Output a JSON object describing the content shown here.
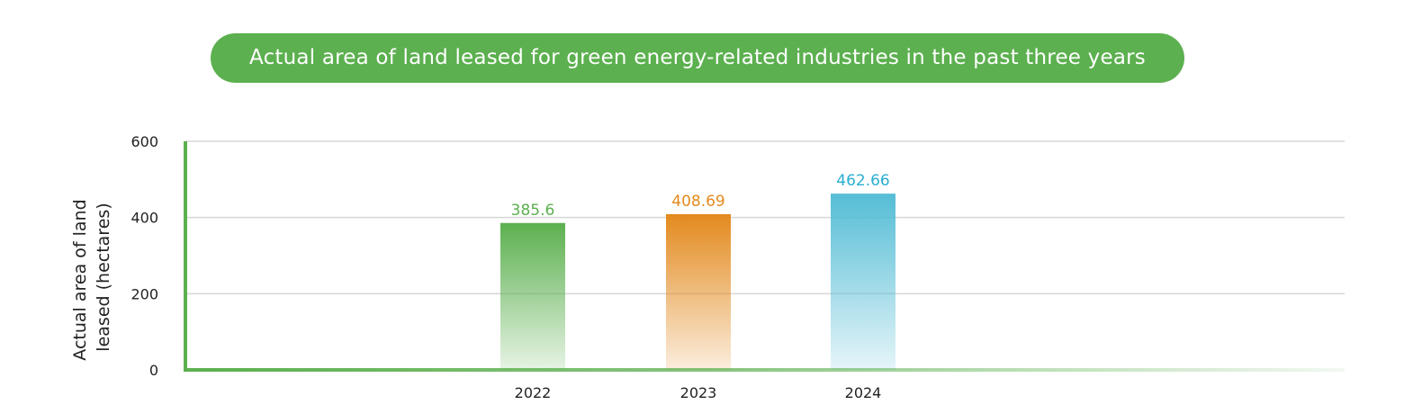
{
  "chart_data": {
    "type": "bar",
    "title": "Actual area of land leased for green energy-related industries in the past three years",
    "ylabel_lines": [
      "Actual area of land",
      "leased (hectares)"
    ],
    "xlabel": "",
    "categories": [
      "2022",
      "2023",
      "2024"
    ],
    "values": [
      385.6,
      408.69,
      462.66
    ],
    "value_labels": [
      "385.6",
      "408.69",
      "462.66"
    ],
    "ylim": [
      0,
      600
    ],
    "yticks": [
      0,
      200,
      400,
      600
    ],
    "grid": true,
    "colors": [
      "#5cb04f",
      "#e38a1e",
      "#55bdd6"
    ],
    "label_colors": [
      "#5cb04f",
      "#e38a1e",
      "#2aaed0"
    ],
    "axis_color": "#5cb04f",
    "grid_color": "#d6d6d6"
  }
}
